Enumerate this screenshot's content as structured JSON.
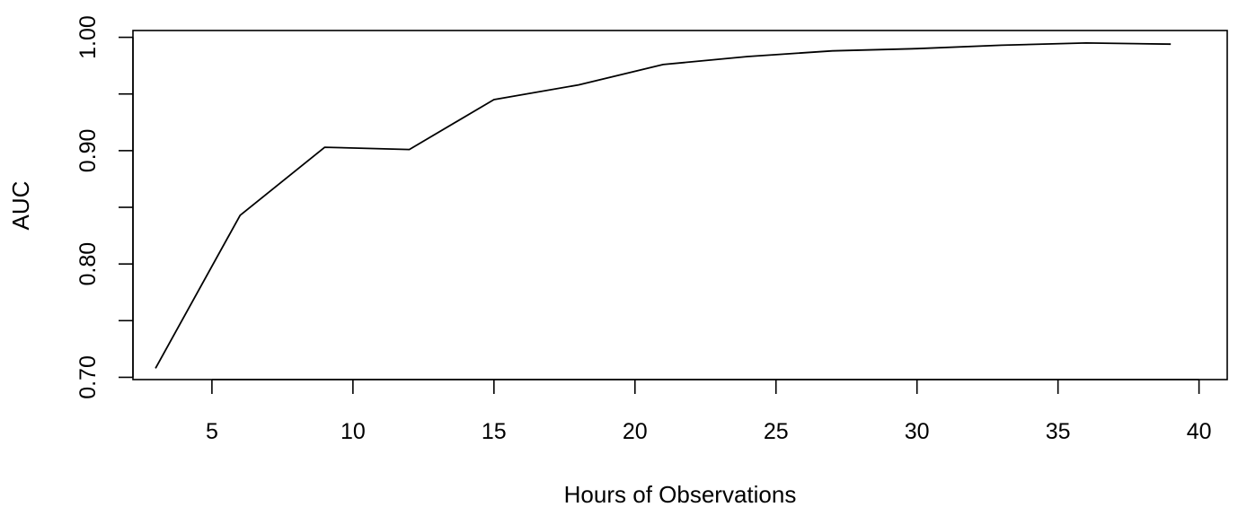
{
  "chart_data": {
    "type": "line",
    "title": "",
    "xlabel": "Hours of Observations",
    "ylabel": "AUC",
    "xlim": [
      2.2,
      41
    ],
    "ylim": [
      0.698,
      1.006
    ],
    "x_ticks": [
      5,
      10,
      15,
      20,
      25,
      30,
      35,
      40
    ],
    "x_tick_labels": [
      "5",
      "10",
      "15",
      "20",
      "25",
      "30",
      "35",
      "40"
    ],
    "y_ticks": [
      0.7,
      0.75,
      0.8,
      0.85,
      0.9,
      0.95,
      1.0
    ],
    "y_tick_labels": [
      "0.70",
      "",
      "0.80",
      "",
      "0.90",
      "",
      "1.00"
    ],
    "grid": false,
    "legend": "none",
    "series": [
      {
        "color": "#000000",
        "x": [
          3,
          6,
          9,
          12,
          15,
          18,
          21,
          24,
          27,
          30,
          33,
          36,
          39
        ],
        "y": [
          0.708,
          0.843,
          0.903,
          0.901,
          0.945,
          0.958,
          0.976,
          0.983,
          0.988,
          0.99,
          0.993,
          0.995,
          0.994
        ]
      }
    ]
  }
}
